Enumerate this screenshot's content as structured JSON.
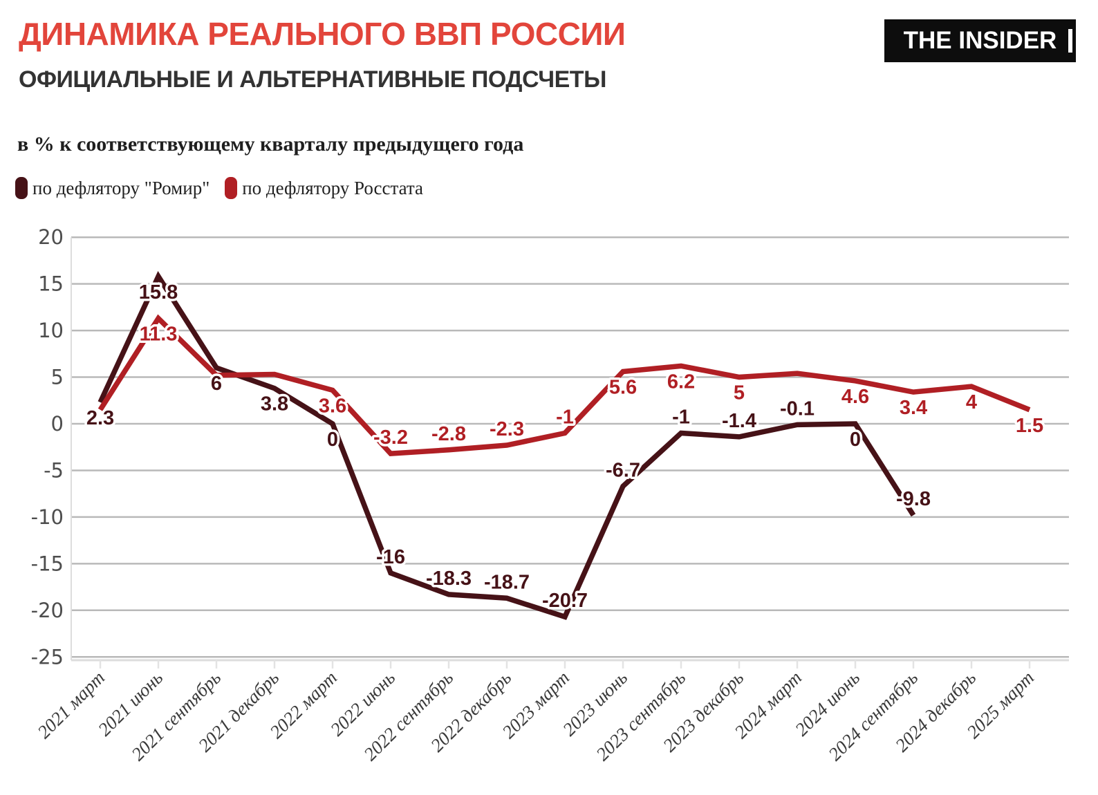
{
  "header": {
    "title": "ДИНАМИКА РЕАЛЬНОГО ВВП РОССИИ",
    "subtitle": "ОФИЦИАЛЬНЫЕ И АЛЬТЕРНАТИВНЫЕ ПОДСЧЕТЫ",
    "logo": "THE INSIDER"
  },
  "note": "в % к соответствующему кварталу предыдущего года",
  "colors": {
    "title_accent": "#e2453b",
    "romir_line": "#461217",
    "rosstat_line": "#b01f24",
    "grid": "#b9b9b9",
    "axis": "#dddddd",
    "tick": "#e3e3e3"
  },
  "chart_data": {
    "type": "line",
    "title": "ДИНАМИКА РЕАЛЬНОГО ВВП РОССИИ",
    "subtitle": "ОФИЦИАЛЬНЫЕ И АЛЬТЕРНАТИВНЫЕ ПОДСЧЕТЫ",
    "unit_note": "в % к соответствующему кварталу предыдущего года",
    "categories": [
      "2021 март",
      "2021 июнь",
      "2021 сентябрь",
      "2021 декабрь",
      "2022 март",
      "2022 июнь",
      "2022 сентябрь",
      "2022 декабрь",
      "2023 март",
      "2023 июнь",
      "2023 сентябрь",
      "2023 декабрь",
      "2024 март",
      "2024 июнь",
      "2024 сентябрь",
      "2024 декабрь",
      "2025 март"
    ],
    "series": [
      {
        "name": "по дефлятору \"Ромир\"",
        "color": "#461217",
        "values": [
          2.3,
          15.8,
          6,
          3.8,
          0,
          -16,
          -18.3,
          -18.7,
          -20.7,
          -6.7,
          -1,
          -1.4,
          -0.1,
          0,
          -9.8,
          null,
          null
        ],
        "labels": [
          "2.3",
          "15.8",
          "6",
          "3.8",
          "0",
          "-16",
          "-18.3",
          "-18.7",
          "-20.7",
          "-6.7",
          "-1",
          "-1.4",
          "-0.1",
          "0",
          "-9.8",
          null,
          null
        ],
        "label_side": [
          "below",
          "below",
          "below",
          "below",
          "below",
          "above",
          "above",
          "above",
          "above",
          "above",
          "above",
          "above",
          "above",
          "below",
          "above",
          null,
          null
        ]
      },
      {
        "name": "по дефлятору Росстата",
        "color": "#b01f24",
        "values": [
          1.5,
          11.3,
          5.2,
          5.3,
          3.6,
          -3.2,
          -2.8,
          -2.3,
          -1,
          5.6,
          6.2,
          5,
          5.4,
          4.6,
          3.4,
          4,
          1.5
        ],
        "labels": [
          null,
          "11.3",
          null,
          null,
          "3.6",
          "-3.2",
          "-2.8",
          "-2.3",
          "-1",
          "5.6",
          "6.2",
          "5",
          null,
          "4.6",
          "3.4",
          "4",
          "1.5"
        ],
        "label_side": [
          null,
          "below",
          null,
          null,
          "below",
          "above",
          "above",
          "above",
          "above",
          "below",
          "below",
          "below",
          null,
          "below",
          "below",
          "below",
          "below"
        ]
      }
    ],
    "ylim": [
      -25,
      20
    ],
    "yticks": [
      20,
      15,
      10,
      5,
      0,
      -5,
      -10,
      -15,
      -20,
      -25
    ],
    "grid": "horizontal",
    "legend_position": "top-left"
  }
}
